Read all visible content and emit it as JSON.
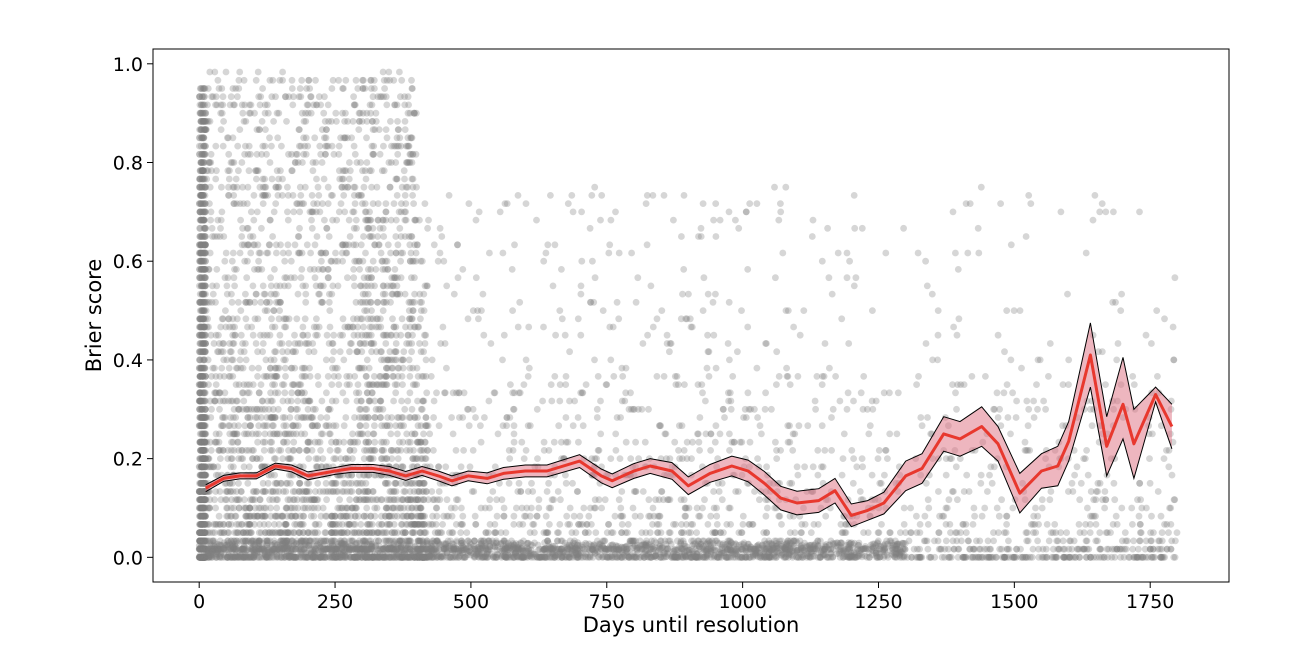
{
  "chart_data": {
    "type": "scatter",
    "title": "",
    "xlabel": "Days until resolution",
    "ylabel": "Brier score",
    "xlim": [
      -85,
      1895
    ],
    "ylim": [
      -0.05,
      1.03
    ],
    "xticks": [
      0,
      250,
      500,
      750,
      1000,
      1250,
      1500,
      1750
    ],
    "yticks": [
      0.0,
      0.2,
      0.4,
      0.6,
      0.8,
      1.0
    ],
    "xtick_labels": [
      "0",
      "250",
      "500",
      "750",
      "1000",
      "1250",
      "1500",
      "1750"
    ],
    "ytick_labels": [
      "0.0",
      "0.2",
      "0.4",
      "0.6",
      "0.8",
      "1.0"
    ],
    "grid": false,
    "colors": {
      "scatter": "#808080",
      "mean_line": "#e8382e",
      "band_fill": "#e07a8a",
      "band_edge": "#000000"
    },
    "mean_series": {
      "x": [
        12,
        45,
        75,
        105,
        140,
        170,
        200,
        250,
        280,
        320,
        350,
        380,
        410,
        440,
        465,
        495,
        530,
        560,
        600,
        640,
        700,
        740,
        760,
        800,
        830,
        870,
        900,
        940,
        980,
        1010,
        1040,
        1070,
        1100,
        1140,
        1170,
        1200,
        1230,
        1260,
        1300,
        1330,
        1370,
        1400,
        1440,
        1470,
        1510,
        1550,
        1580,
        1600,
        1640,
        1670,
        1700,
        1720,
        1760,
        1790
      ],
      "y": [
        0.14,
        0.16,
        0.165,
        0.165,
        0.185,
        0.18,
        0.165,
        0.175,
        0.18,
        0.18,
        0.175,
        0.165,
        0.175,
        0.165,
        0.155,
        0.165,
        0.16,
        0.17,
        0.175,
        0.175,
        0.195,
        0.165,
        0.155,
        0.175,
        0.185,
        0.175,
        0.145,
        0.17,
        0.185,
        0.175,
        0.15,
        0.12,
        0.11,
        0.115,
        0.135,
        0.085,
        0.095,
        0.11,
        0.165,
        0.18,
        0.25,
        0.24,
        0.265,
        0.23,
        0.13,
        0.175,
        0.185,
        0.235,
        0.41,
        0.225,
        0.31,
        0.23,
        0.33,
        0.265
      ],
      "lower": [
        0.133,
        0.154,
        0.159,
        0.159,
        0.179,
        0.173,
        0.157,
        0.168,
        0.172,
        0.172,
        0.166,
        0.156,
        0.166,
        0.155,
        0.145,
        0.155,
        0.149,
        0.158,
        0.163,
        0.163,
        0.182,
        0.151,
        0.141,
        0.16,
        0.17,
        0.158,
        0.127,
        0.152,
        0.165,
        0.153,
        0.126,
        0.096,
        0.086,
        0.091,
        0.11,
        0.062,
        0.075,
        0.088,
        0.135,
        0.15,
        0.215,
        0.205,
        0.225,
        0.195,
        0.09,
        0.14,
        0.145,
        0.195,
        0.345,
        0.165,
        0.24,
        0.16,
        0.315,
        0.22
      ],
      "upper": [
        0.147,
        0.166,
        0.171,
        0.171,
        0.191,
        0.187,
        0.173,
        0.182,
        0.188,
        0.188,
        0.184,
        0.174,
        0.184,
        0.175,
        0.165,
        0.175,
        0.171,
        0.182,
        0.187,
        0.187,
        0.208,
        0.179,
        0.169,
        0.19,
        0.2,
        0.192,
        0.163,
        0.188,
        0.205,
        0.197,
        0.174,
        0.144,
        0.134,
        0.139,
        0.16,
        0.108,
        0.115,
        0.132,
        0.195,
        0.21,
        0.285,
        0.275,
        0.305,
        0.265,
        0.17,
        0.21,
        0.225,
        0.275,
        0.475,
        0.285,
        0.405,
        0.3,
        0.345,
        0.31
      ]
    }
  }
}
